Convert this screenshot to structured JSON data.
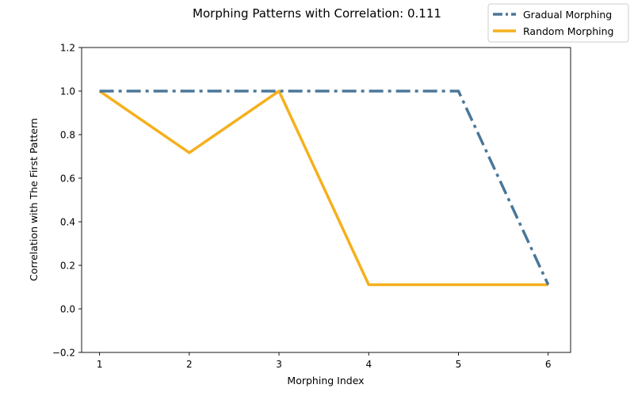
{
  "chart_data": {
    "type": "line",
    "title": "Morphing Patterns with Correlation: 0.111",
    "xlabel": "Morphing Index",
    "ylabel": "Correlation with The First Pattern",
    "x": [
      1,
      2,
      3,
      4,
      5,
      6
    ],
    "xticks": [
      "1",
      "2",
      "3",
      "4",
      "5",
      "6"
    ],
    "xlim": [
      0.8,
      6.25
    ],
    "ylim": [
      -0.2,
      1.2
    ],
    "yticks": [
      "−0.2",
      "0.0",
      "0.2",
      "0.4",
      "0.6",
      "0.8",
      "1.0",
      "1.2"
    ],
    "grid": false,
    "legend_position": "top-right",
    "series": [
      {
        "name": "Gradual Morphing",
        "values": [
          1.0,
          1.0,
          1.0,
          1.0,
          1.0,
          0.111
        ],
        "color": "#4a7799",
        "line_style": "dash-dot"
      },
      {
        "name": "Random Morphing",
        "values": [
          1.0,
          0.717,
          1.0,
          0.111,
          0.111,
          0.111
        ],
        "color": "#f5b01d",
        "line_style": "solid"
      }
    ]
  }
}
